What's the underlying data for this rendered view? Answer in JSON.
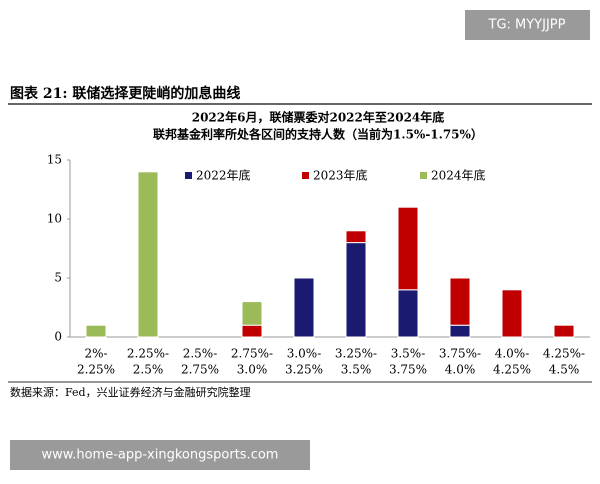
{
  "badge": "TG: MYYJJPP",
  "header": {
    "title": "图表 21:  联储选择更陡峭的加息曲线"
  },
  "source": "数据来源：Fed，兴业证券经济与金融研究院整理",
  "footer": {
    "url": "www.home-app-xingkongsports.com"
  },
  "chart_data": {
    "type": "bar",
    "stacked": true,
    "title": [
      "2022年6月，联储票委对2022年至2024年底",
      "联邦基金利率所处各区间的支持人数（当前为1.5%-1.75%）"
    ],
    "categories": [
      [
        "2%-",
        "2.25%"
      ],
      [
        "2.25%-",
        "2.5%"
      ],
      [
        "2.5%-",
        "2.75%"
      ],
      [
        "2.75%-",
        "3.0%"
      ],
      [
        "3.0%-",
        "3.25%"
      ],
      [
        "3.25%-",
        "3.5%"
      ],
      [
        "3.5%-",
        "3.75%"
      ],
      [
        "3.75%-",
        "4.0%"
      ],
      [
        "4.0%-",
        "4.25%"
      ],
      [
        "4.25%-",
        "4.5%"
      ]
    ],
    "series": [
      {
        "name": "2022年底",
        "color": "#1a1a70",
        "values": [
          0,
          0,
          0,
          0,
          5,
          8,
          4,
          1,
          0,
          0
        ]
      },
      {
        "name": "2023年底",
        "color": "#c00000",
        "values": [
          0,
          0,
          0,
          1,
          0,
          1,
          7,
          4,
          4,
          1
        ]
      },
      {
        "name": "2024年底",
        "color": "#9bbb59",
        "values": [
          1,
          14,
          0,
          2,
          0,
          0,
          0,
          0,
          0,
          0
        ]
      }
    ],
    "ylim": [
      0,
      15
    ],
    "yticks": [
      0,
      5,
      10,
      15
    ],
    "grid": false,
    "legend": "top"
  }
}
